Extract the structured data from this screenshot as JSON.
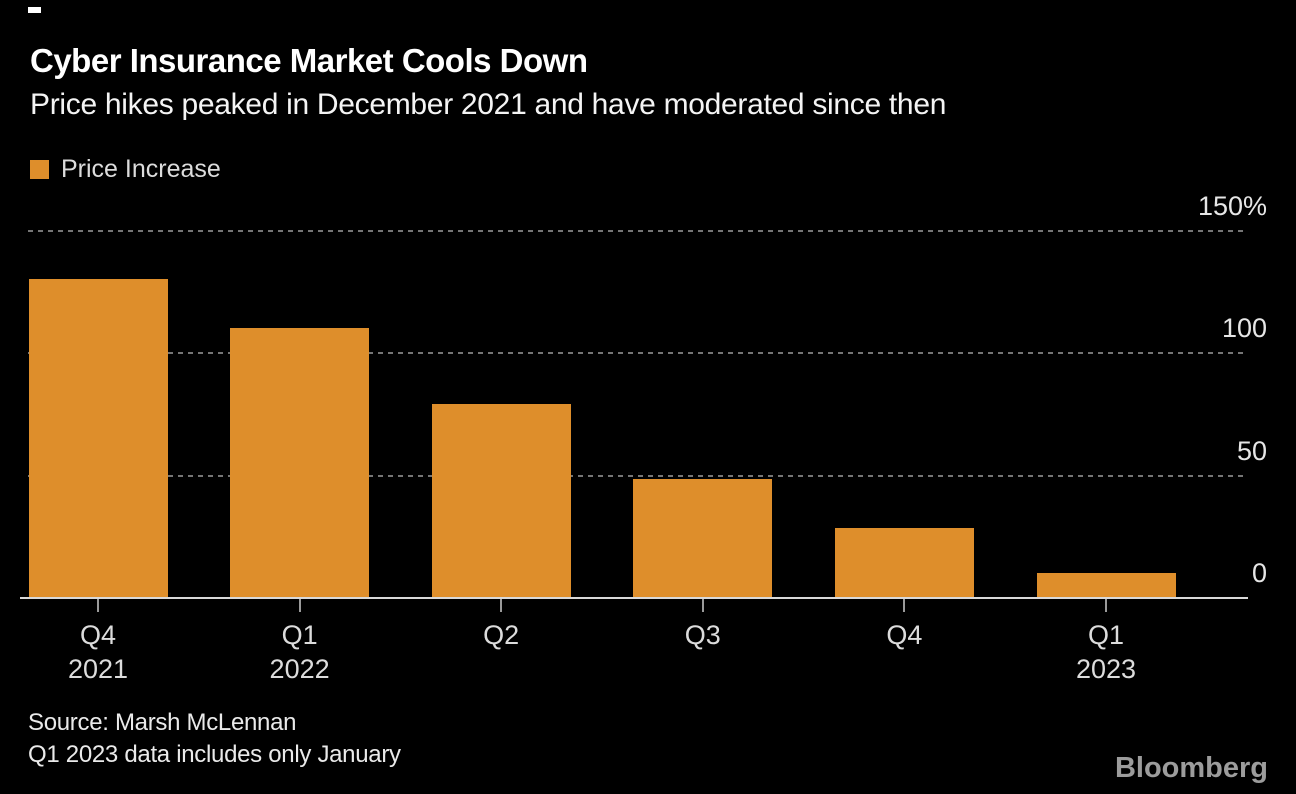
{
  "header": {
    "title": "Cyber Insurance Market Cools Down",
    "subtitle": "Price hikes peaked in December 2021 and have moderated since then"
  },
  "legend": {
    "label": "Price Increase",
    "swatch_color": "#de8e2b"
  },
  "chart_data": {
    "type": "bar",
    "title": "Cyber Insurance Market Cools Down",
    "subtitle": "Price hikes peaked in December 2021 and have moderated since then",
    "series_name": "Price Increase",
    "categories": [
      {
        "quarter": "Q4",
        "year": "2021"
      },
      {
        "quarter": "Q1",
        "year": "2022"
      },
      {
        "quarter": "Q2",
        "year": ""
      },
      {
        "quarter": "Q3",
        "year": ""
      },
      {
        "quarter": "Q4",
        "year": ""
      },
      {
        "quarter": "Q1",
        "year": "2023"
      }
    ],
    "values": [
      130,
      110,
      79,
      48,
      28,
      10
    ],
    "unit": "%",
    "ylim": [
      0,
      150
    ],
    "yticks": [
      {
        "label": "150%",
        "value": 150,
        "gridline": true
      },
      {
        "label": "100",
        "value": 100,
        "gridline": true
      },
      {
        "label": "50",
        "value": 50,
        "gridline": true
      },
      {
        "label": "0",
        "value": 0,
        "gridline": false
      }
    ],
    "grid": "horizontal-dotted",
    "legend_position": "top-left",
    "axis_labels_side": "right",
    "bar_color": "#de8e2b"
  },
  "colors": {
    "background": "#000000",
    "bar": "#de8e2b",
    "gridline": "#757575",
    "baseline": "#d9d9d9",
    "text_primary": "#ffffff",
    "text_secondary": "#dcdcdc"
  },
  "footer": {
    "source_line1": "Source: Marsh McLennan",
    "source_line2": "Q1 2023 data includes only January",
    "logo": "Bloomberg"
  }
}
